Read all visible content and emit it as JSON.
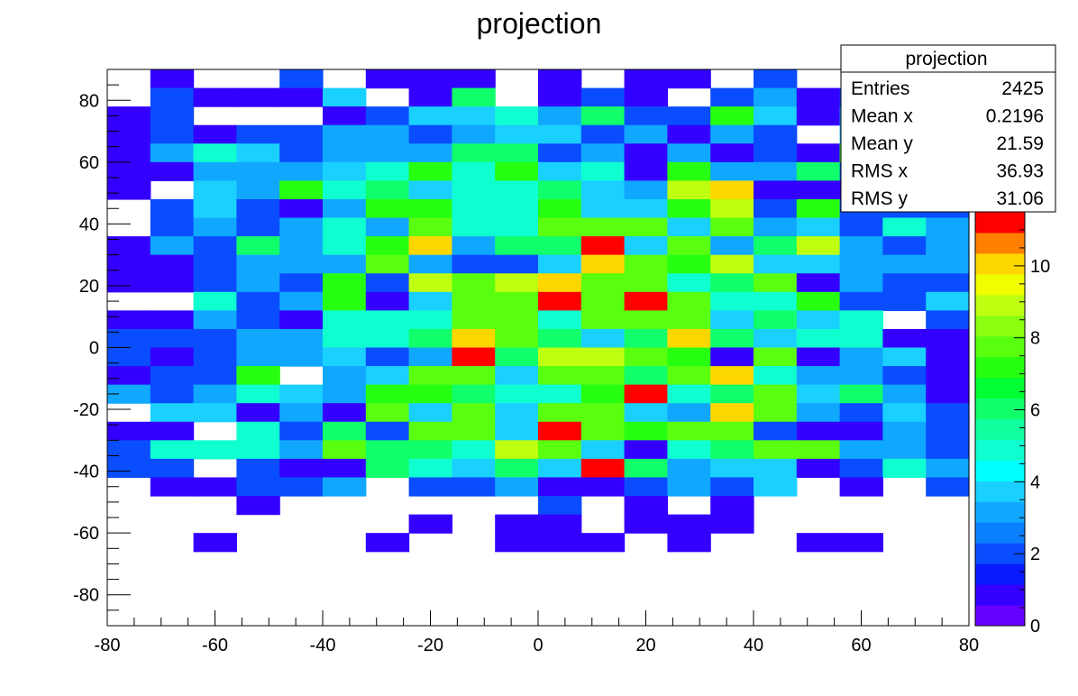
{
  "chart_data": {
    "type": "heatmap",
    "title": "projection",
    "xlabel": "",
    "ylabel": "",
    "xlim": [
      -80,
      80
    ],
    "ylim": [
      -90,
      90
    ],
    "bin_width_x": 8,
    "bin_width_y": 6,
    "x_ticks": [
      "-80",
      "-60",
      "-40",
      "-20",
      "0",
      "20",
      "40",
      "60",
      "80"
    ],
    "y_ticks": [
      "-80",
      "-60",
      "-40",
      "-20",
      "0",
      "20",
      "40",
      "60",
      "80"
    ],
    "x_bin_starts": [
      -80,
      -72,
      -64,
      -56,
      -48,
      -40,
      -32,
      -24,
      -16,
      -8,
      0,
      8,
      16,
      24,
      32,
      40,
      48,
      56,
      64,
      72
    ],
    "y_bin_tops": [
      90,
      84,
      78,
      72,
      66,
      60,
      54,
      48,
      42,
      36,
      30,
      24,
      18,
      12,
      6,
      0,
      -6,
      -12,
      -18,
      -24,
      -30,
      -36,
      -42,
      -48,
      -54,
      -60
    ],
    "z_rows_top_to_bottom": [
      [
        0,
        1,
        0,
        0,
        2,
        0,
        1,
        1,
        1,
        0,
        1,
        0,
        1,
        1,
        0,
        2,
        0,
        0,
        1,
        0
      ],
      [
        0,
        2,
        1,
        1,
        1,
        4,
        0,
        1,
        6,
        0,
        1,
        2,
        1,
        0,
        2,
        3,
        1,
        2,
        1,
        1
      ],
      [
        1,
        2,
        0,
        0,
        0,
        1,
        2,
        4,
        4,
        5,
        3,
        6,
        2,
        2,
        7,
        4,
        1,
        3,
        0,
        1
      ],
      [
        1,
        2,
        1,
        2,
        2,
        3,
        3,
        2,
        3,
        4,
        4,
        2,
        3,
        1,
        3,
        2,
        0,
        3,
        3,
        5
      ],
      [
        1,
        3,
        5,
        4,
        2,
        3,
        3,
        3,
        6,
        6,
        2,
        3,
        1,
        3,
        1,
        2,
        1,
        7,
        3,
        3
      ],
      [
        1,
        1,
        3,
        3,
        3,
        4,
        5,
        7,
        5,
        7,
        4,
        5,
        1,
        7,
        3,
        3,
        6,
        2,
        4,
        3
      ],
      [
        1,
        0,
        4,
        3,
        7,
        5,
        6,
        4,
        5,
        5,
        6,
        4,
        3,
        9,
        10,
        1,
        1,
        1,
        1,
        4
      ],
      [
        0,
        2,
        4,
        2,
        1,
        3,
        7,
        7,
        5,
        5,
        7,
        4,
        4,
        7,
        9,
        2,
        7,
        2,
        2,
        2
      ],
      [
        0,
        2,
        3,
        2,
        3,
        5,
        3,
        8,
        5,
        5,
        8,
        8,
        8,
        4,
        8,
        3,
        4,
        2,
        5,
        3
      ],
      [
        1,
        3,
        2,
        6,
        3,
        5,
        7,
        10,
        3,
        6,
        6,
        11,
        4,
        8,
        3,
        6,
        9,
        3,
        2,
        3
      ],
      [
        1,
        1,
        2,
        3,
        3,
        3,
        8,
        3,
        2,
        2,
        4,
        10,
        8,
        7,
        9,
        4,
        4,
        3,
        3,
        3
      ],
      [
        1,
        1,
        2,
        3,
        2,
        7,
        2,
        9,
        8,
        9,
        10,
        8,
        8,
        5,
        6,
        8,
        1,
        3,
        2,
        2
      ],
      [
        0,
        0,
        5,
        2,
        3,
        7,
        1,
        4,
        8,
        8,
        11,
        8,
        13,
        8,
        5,
        5,
        7,
        2,
        2,
        4
      ],
      [
        1,
        1,
        3,
        2,
        1,
        5,
        5,
        5,
        8,
        8,
        5,
        8,
        8,
        8,
        4,
        6,
        4,
        5,
        0,
        2
      ],
      [
        2,
        2,
        2,
        3,
        3,
        5,
        5,
        6,
        10,
        8,
        6,
        4,
        6,
        10,
        6,
        4,
        5,
        5,
        1,
        1
      ],
      [
        2,
        1,
        2,
        3,
        3,
        4,
        2,
        3,
        11,
        6,
        9,
        9,
        8,
        7,
        1,
        8,
        1,
        3,
        4,
        1
      ],
      [
        1,
        2,
        2,
        7,
        0,
        3,
        4,
        8,
        8,
        4,
        8,
        8,
        6,
        8,
        10,
        5,
        3,
        3,
        2,
        1
      ],
      [
        3,
        2,
        3,
        5,
        4,
        3,
        7,
        7,
        6,
        5,
        5,
        7,
        14,
        5,
        6,
        8,
        4,
        6,
        3,
        1
      ],
      [
        0,
        4,
        4,
        1,
        3,
        1,
        8,
        4,
        8,
        4,
        8,
        8,
        4,
        3,
        10,
        8,
        3,
        2,
        4,
        2
      ],
      [
        1,
        1,
        0,
        5,
        2,
        6,
        2,
        8,
        8,
        4,
        13,
        8,
        7,
        8,
        8,
        2,
        1,
        1,
        3,
        2
      ],
      [
        2,
        5,
        5,
        5,
        3,
        8,
        6,
        6,
        5,
        9,
        8,
        4,
        1,
        5,
        6,
        8,
        8,
        3,
        3,
        2
      ],
      [
        2,
        2,
        0,
        2,
        1,
        1,
        6,
        5,
        4,
        6,
        4,
        13,
        6,
        3,
        4,
        4,
        1,
        2,
        5,
        3
      ],
      [
        0,
        1,
        1,
        2,
        2,
        3,
        0,
        2,
        2,
        3,
        1,
        1,
        2,
        3,
        2,
        4,
        0,
        1,
        0,
        2
      ],
      [
        0,
        0,
        0,
        1,
        0,
        0,
        0,
        0,
        0,
        0,
        2,
        0,
        1,
        0,
        1,
        0,
        0,
        0,
        0,
        0
      ],
      [
        0,
        0,
        0,
        0,
        0,
        0,
        0,
        1,
        0,
        0,
        1,
        0,
        1,
        0,
        0,
        0,
        0,
        0,
        0,
        0
      ],
      [
        0,
        0,
        0,
        0,
        0,
        0,
        0,
        0,
        0,
        1,
        1,
        1,
        0,
        0,
        0,
        0,
        1,
        1,
        0,
        0
      ]
    ],
    "extra_bins_low_y": [
      {
        "y_top": -54,
        "x_start": -8,
        "z": 1
      },
      {
        "y_top": -54,
        "x_start": 24,
        "z": 1
      },
      {
        "y_top": -54,
        "x_start": 32,
        "z": 1
      },
      {
        "y_top": -60,
        "x_start": -64,
        "z": 1
      },
      {
        "y_top": -60,
        "x_start": -32,
        "z": 1
      },
      {
        "y_top": -60,
        "x_start": 24,
        "z": 1
      }
    ],
    "colorbar": {
      "zmin": 0,
      "zmax": 11.5,
      "levels": 20,
      "tick_labels": [
        "0",
        "2",
        "4",
        "6",
        "8",
        "10"
      ]
    },
    "palette": [
      "#6600ff",
      "#3300ff",
      "#0a1aff",
      "#0a4dff",
      "#0a80ff",
      "#10a8ff",
      "#1ad0ff",
      "#00ffff",
      "#10ffd0",
      "#10ff9f",
      "#10ff6b",
      "#00ff33",
      "#27ff10",
      "#5aff10",
      "#8cff10",
      "#bfff10",
      "#f0ff00",
      "#ffd700",
      "#ff7f00",
      "#ff0000"
    ]
  },
  "stats_box": {
    "title": "projection",
    "rows": [
      {
        "label": "Entries",
        "value": "2425"
      },
      {
        "label": "Mean x",
        "value": "0.2196"
      },
      {
        "label": "Mean y",
        "value": "21.59"
      },
      {
        "label": "RMS x",
        "value": "36.93"
      },
      {
        "label": "RMS y",
        "value": "31.06"
      }
    ]
  }
}
